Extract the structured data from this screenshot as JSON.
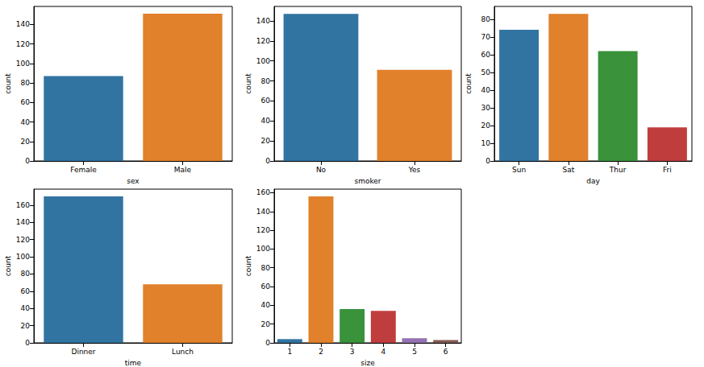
{
  "chart_data": [
    {
      "type": "bar",
      "x_label": "sex",
      "y_label": "count",
      "categories": [
        "Female",
        "Male"
      ],
      "values": [
        87,
        151
      ],
      "colors": [
        "#3274a1",
        "#e1812c"
      ],
      "ylim": [
        0,
        158.5
      ],
      "yticks": [
        0,
        20,
        40,
        60,
        80,
        100,
        120,
        140
      ],
      "grid": false
    },
    {
      "type": "bar",
      "x_label": "smoker",
      "y_label": "count",
      "categories": [
        "No",
        "Yes"
      ],
      "values": [
        147,
        91
      ],
      "colors": [
        "#3274a1",
        "#e1812c"
      ],
      "ylim": [
        0,
        154.4
      ],
      "yticks": [
        0,
        20,
        40,
        60,
        80,
        100,
        120,
        140
      ],
      "grid": false
    },
    {
      "type": "bar",
      "x_label": "day",
      "y_label": "count",
      "categories": [
        "Sun",
        "Sat",
        "Thur",
        "Fri"
      ],
      "values": [
        74,
        83,
        62,
        19
      ],
      "colors": [
        "#3274a1",
        "#e1812c",
        "#3a923a",
        "#c03d3e"
      ],
      "ylim": [
        0,
        87.2
      ],
      "yticks": [
        0,
        10,
        20,
        30,
        40,
        50,
        60,
        70,
        80
      ],
      "grid": false
    },
    {
      "type": "bar",
      "x_label": "time",
      "y_label": "count",
      "categories": [
        "Dinner",
        "Lunch"
      ],
      "values": [
        170,
        68
      ],
      "colors": [
        "#3274a1",
        "#e1812c"
      ],
      "ylim": [
        0,
        178.5
      ],
      "yticks": [
        0,
        20,
        40,
        60,
        80,
        100,
        120,
        140,
        160
      ],
      "grid": false
    },
    {
      "type": "bar",
      "x_label": "size",
      "y_label": "count",
      "categories": [
        "1",
        "2",
        "3",
        "4",
        "5",
        "6"
      ],
      "values": [
        4,
        156,
        36,
        34,
        5,
        3
      ],
      "colors": [
        "#3274a1",
        "#e1812c",
        "#3a923a",
        "#c03d3e",
        "#9372b2",
        "#845b53"
      ],
      "ylim": [
        0,
        163.8
      ],
      "yticks": [
        0,
        20,
        40,
        60,
        80,
        100,
        120,
        140,
        160
      ],
      "grid": false
    }
  ]
}
